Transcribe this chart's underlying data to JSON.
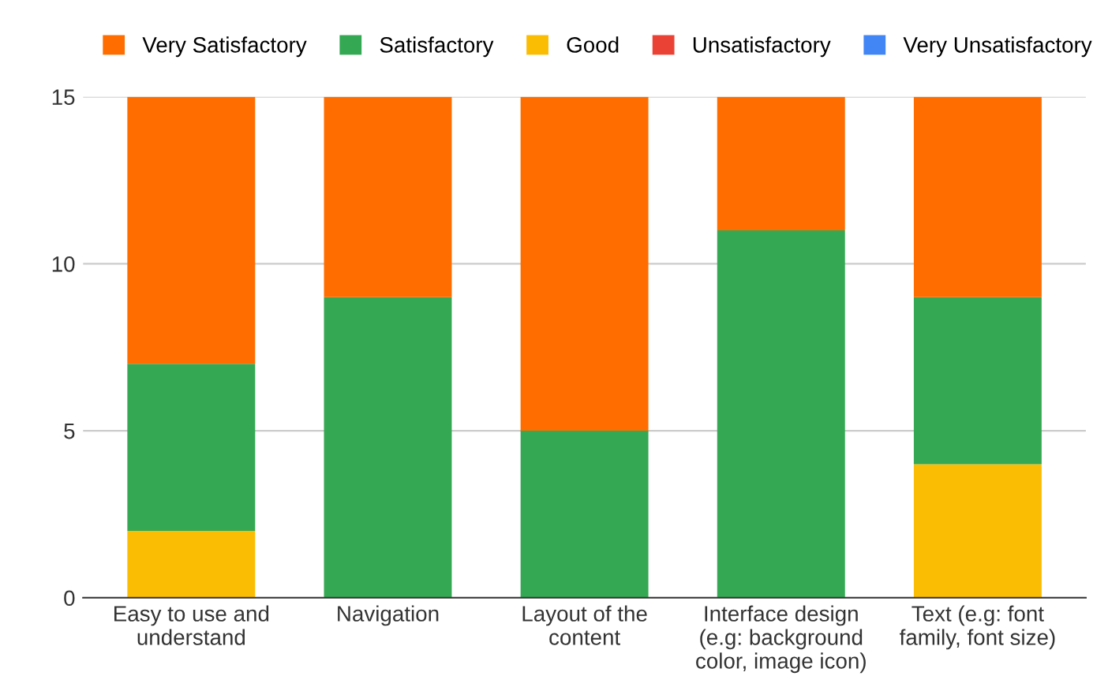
{
  "chart_data": {
    "type": "bar",
    "stacked": true,
    "categories": [
      "Easy to use and\nunderstand",
      "Navigation",
      "Layout of the\ncontent",
      "Interface design\n(e.g: background\ncolor, image icon)",
      "Text (e.g: font\nfamily, font size)"
    ],
    "series": [
      {
        "name": "Very Unsatisfactory",
        "color": "#4285f4",
        "values": [
          0,
          0,
          0,
          0,
          0
        ]
      },
      {
        "name": "Unsatisfactory",
        "color": "#ea4335",
        "values": [
          0,
          0,
          0,
          0,
          0
        ]
      },
      {
        "name": "Good",
        "color": "#fbbc04",
        "values": [
          2,
          0,
          0,
          0,
          4
        ]
      },
      {
        "name": "Satisfactory",
        "color": "#34a853",
        "values": [
          5,
          9,
          5,
          11,
          5
        ]
      },
      {
        "name": "Very Satisfactory",
        "color": "#ff6d01",
        "values": [
          8,
          6,
          10,
          4,
          6
        ]
      }
    ],
    "ylim": [
      0,
      15
    ],
    "yticks": [
      0,
      5,
      10,
      15
    ],
    "grid": "y",
    "legend": "top"
  }
}
